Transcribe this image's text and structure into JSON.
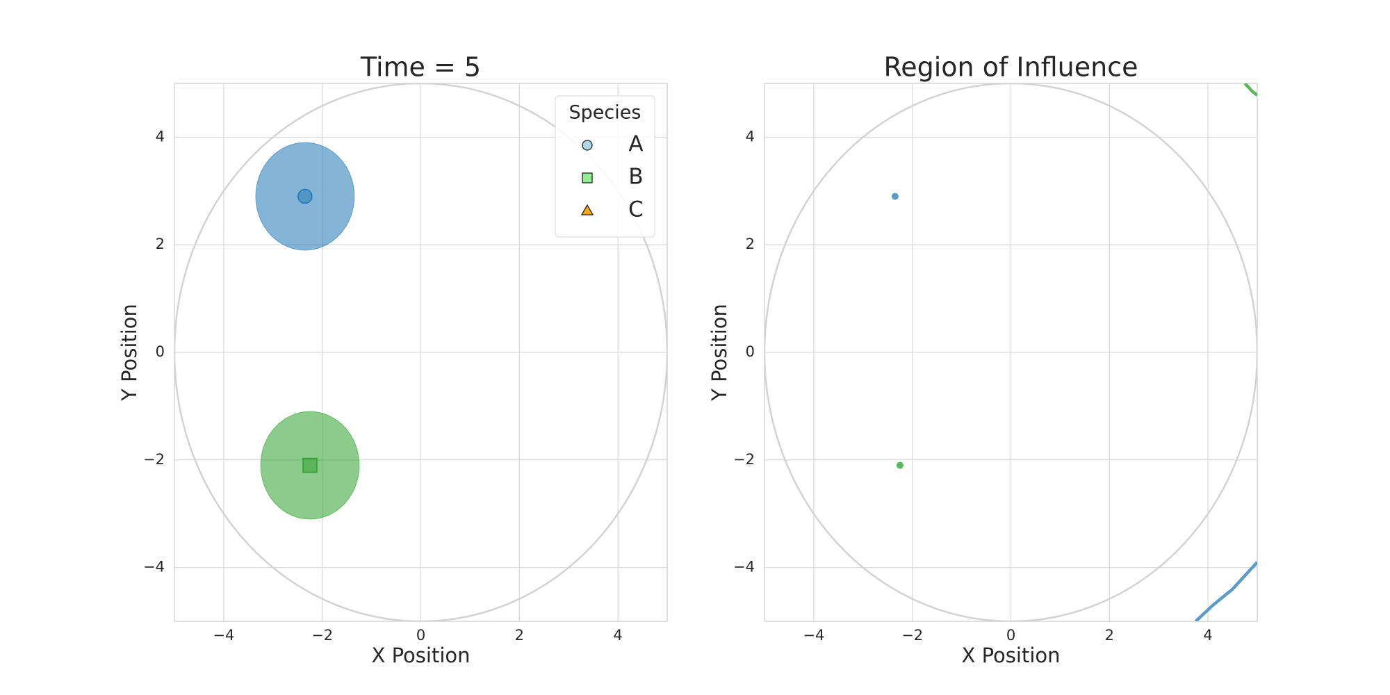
{
  "chart_data": [
    {
      "type": "scatter",
      "title": "Time = 5",
      "x_label": "X Position",
      "y_label": "Y Position",
      "xlim": [
        -5,
        5
      ],
      "ylim": [
        -5,
        5
      ],
      "xticks": [
        {
          "value": -4,
          "label": "−4"
        },
        {
          "value": -2,
          "label": "−2"
        },
        0,
        2,
        4
      ],
      "yticks": [
        {
          "value": -4,
          "label": "−4"
        },
        {
          "value": -2,
          "label": "−2"
        },
        0,
        2,
        4
      ],
      "grid": true,
      "boundary_radius": 5,
      "legend": "upper right",
      "legend_title": "Species",
      "series": [
        {
          "name": "A",
          "marker": "circle",
          "color": "#add8e6",
          "fill_color": "#1f77b4",
          "x": [
            -2.35
          ],
          "y": [
            2.9
          ],
          "radius": [
            1
          ]
        },
        {
          "name": "B",
          "marker": "square",
          "color": "#90ee90",
          "fill_color": "#2ca02c",
          "x": [
            -2.25
          ],
          "y": [
            -2.1
          ],
          "radius": [
            1
          ]
        },
        {
          "name": "C",
          "marker": "triangle",
          "color": "#ffa500",
          "fill_color": "#ff7f0e",
          "x": [],
          "y": [],
          "radius": []
        }
      ]
    },
    {
      "type": "scatter",
      "title": "Region of Influence",
      "x_label": "X Position",
      "y_label": "Y Position",
      "xlim": [
        -5,
        5
      ],
      "ylim": [
        -5,
        5
      ],
      "xticks": [
        {
          "value": -4,
          "label": "−4"
        },
        {
          "value": -2,
          "label": "−2"
        },
        0,
        2,
        4
      ],
      "yticks": [
        {
          "value": -4,
          "label": "−4"
        },
        {
          "value": -2,
          "label": "−2"
        },
        0,
        2,
        4
      ],
      "grid": true,
      "boundary_radius": 5,
      "series": [
        {
          "color": "#5b9bc8",
          "x": [
            -2.35
          ],
          "y": [
            2.9
          ]
        },
        {
          "color": "#5cb85c",
          "x": [
            -2.25
          ],
          "y": [
            -2.1
          ]
        }
      ],
      "curves": [
        {
          "color": "#5b9bc8",
          "x": [
            3.75,
            4.1,
            4.5,
            5
          ],
          "y": [
            -5,
            -4.7,
            -4.4,
            -3.9
          ]
        },
        {
          "color": "#5cb85c",
          "x": [
            4.75,
            4.9,
            5
          ],
          "y": [
            5,
            4.85,
            4.78
          ]
        }
      ]
    }
  ]
}
